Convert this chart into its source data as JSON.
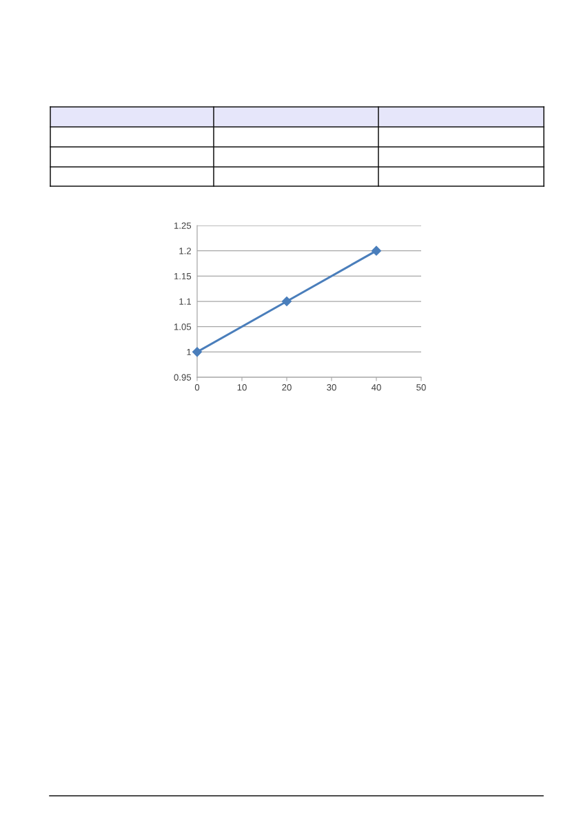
{
  "chart_data": {
    "type": "line",
    "x": [
      0,
      20,
      40
    ],
    "series": [
      {
        "color": "#4a7ebb",
        "values": [
          1,
          1.1,
          1.2
        ]
      }
    ],
    "xlim": [
      0,
      50
    ],
    "xticks": [
      0,
      10,
      20,
      30,
      40,
      50
    ],
    "ylim": [
      0.95,
      1.25
    ],
    "yticks": [
      0.95,
      1,
      1.05,
      1.1,
      1.15,
      1.2,
      1.25
    ],
    "grid": "y",
    "marker": "diamond",
    "line_style": "solid"
  }
}
